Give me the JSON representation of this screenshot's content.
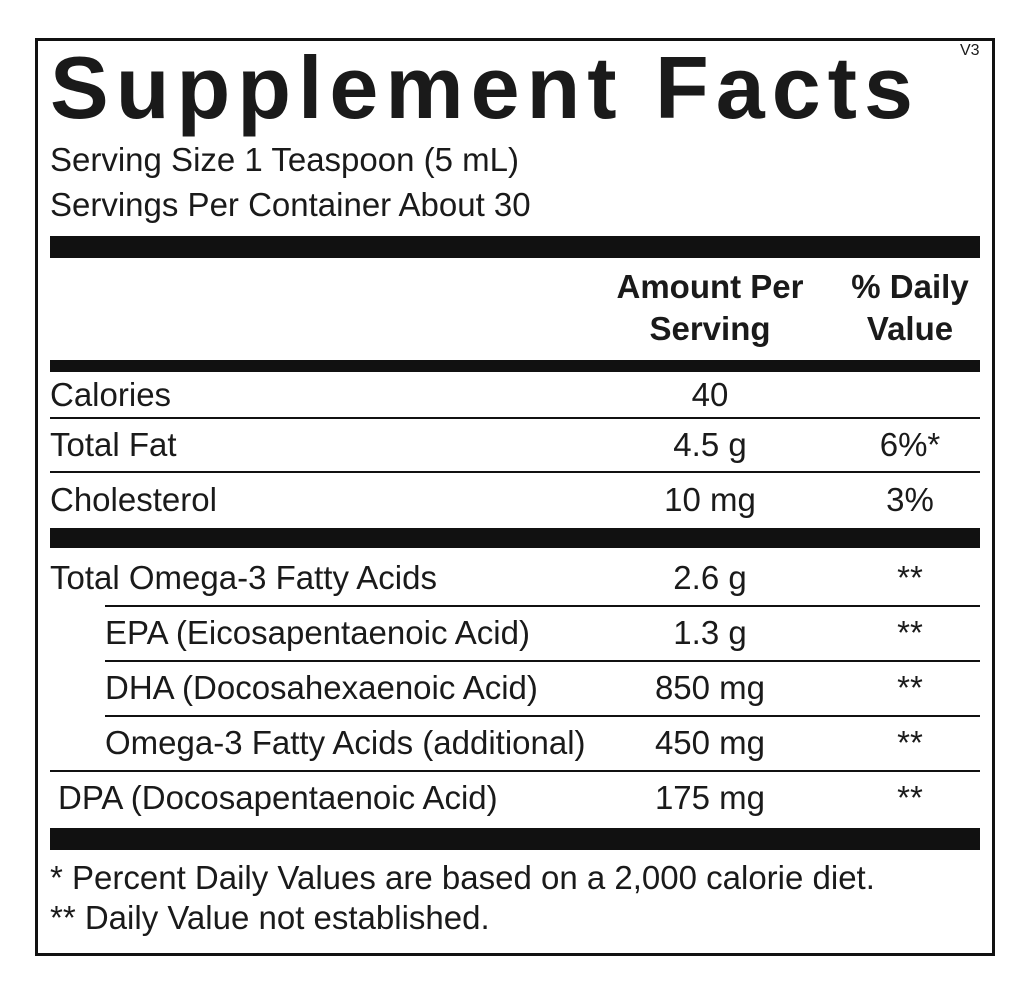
{
  "title": "Supplement Facts",
  "version": "V3",
  "serving_size": "Serving Size 1 Teaspoon (5 mL)",
  "servings_per_container": "Servings Per Container About 30",
  "header": {
    "amount": [
      "Amount Per",
      "Serving"
    ],
    "daily_value": [
      "% Daily",
      "Value"
    ]
  },
  "sections": [
    [
      {
        "label": "Calories",
        "amount": "40"
      },
      {
        "label": "Total Fat",
        "amount": "4.5 g",
        "dv": "6%*"
      },
      {
        "label": "Cholesterol",
        "amount": "10 mg",
        "dv": "3%"
      }
    ],
    [
      {
        "label": "Total Omega-3 Fatty Acids",
        "amount": "2.6 g",
        "dv": "**",
        "sub": [
          {
            "label": "EPA (Eicosapentaenoic Acid)",
            "amount": "1.3 g",
            "dv": "**"
          },
          {
            "label": "DHA (Docosahexaenoic Acid)",
            "amount": "850 mg",
            "dv": "**"
          },
          {
            "label": "Omega-3 Fatty Acids (additional)",
            "amount": "450 mg",
            "dv": "**"
          }
        ]
      },
      {
        "label": "DPA (Docosapentaenoic Acid)",
        "amount": "175 mg",
        "dv": "**"
      }
    ]
  ],
  "footnotes": [
    "* Percent Daily Values are based on a 2,000 calorie diet.",
    "** Daily Value not established."
  ]
}
